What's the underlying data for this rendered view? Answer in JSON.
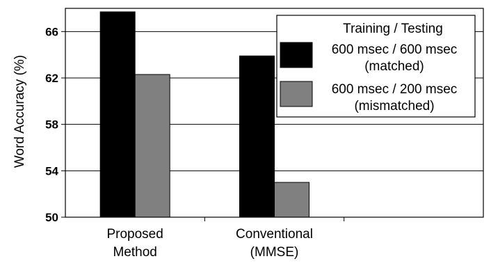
{
  "chart_data": {
    "type": "bar",
    "ylabel": "Word Accuracy (%)",
    "xlabel": "",
    "ylim": [
      50,
      68
    ],
    "yticks": [
      50,
      54,
      58,
      62,
      66
    ],
    "grid": "horizontal",
    "categories": [
      {
        "lines": [
          "Proposed",
          "Method"
        ]
      },
      {
        "lines": [
          "Conventional",
          "(MMSE)"
        ]
      },
      {
        "lines": []
      }
    ],
    "legend": {
      "placement": "top-right",
      "title": "Training / Testing"
    },
    "series": [
      {
        "name_lines": [
          "600 msec / 600 msec",
          "(matched)"
        ],
        "color": "#000000",
        "values": [
          67.7,
          63.9,
          null
        ]
      },
      {
        "name_lines": [
          "600 msec / 200 msec",
          "(mismatched)"
        ],
        "color": "#808080",
        "values": [
          62.3,
          53.0,
          null
        ]
      }
    ]
  }
}
